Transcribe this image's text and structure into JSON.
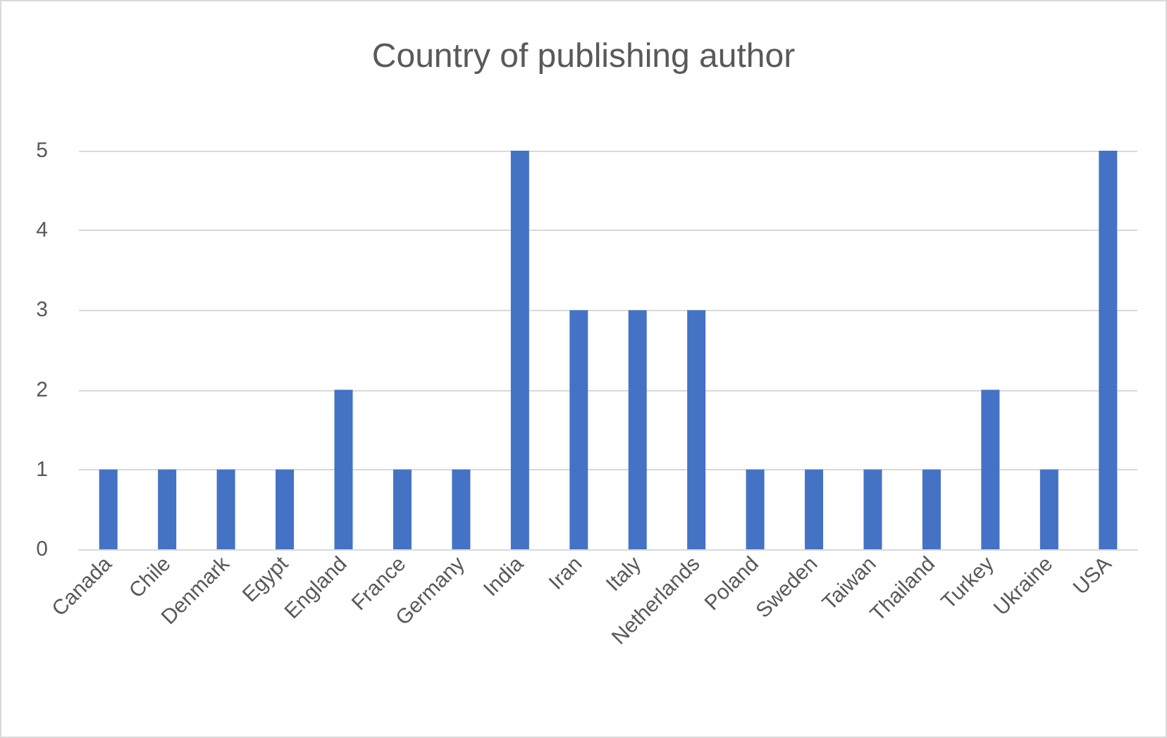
{
  "chart_data": {
    "type": "bar",
    "title": "Country of publishing author",
    "categories": [
      "Canada",
      "Chile",
      "Denmark",
      "Egypt",
      "England",
      "France",
      "Germany",
      "India",
      "Iran",
      "Italy",
      "Netherlands",
      "Poland",
      "Sweden",
      "Taiwan",
      "Thailand",
      "Turkey",
      "Ukraine",
      "USA"
    ],
    "values": [
      1,
      1,
      1,
      1,
      2,
      1,
      1,
      5,
      3,
      3,
      3,
      1,
      1,
      1,
      1,
      2,
      1,
      5
    ],
    "color": "#4472c4",
    "ylim": [
      0,
      5
    ],
    "yticks": [
      0,
      1,
      2,
      3,
      4,
      5
    ],
    "grid": "y"
  }
}
